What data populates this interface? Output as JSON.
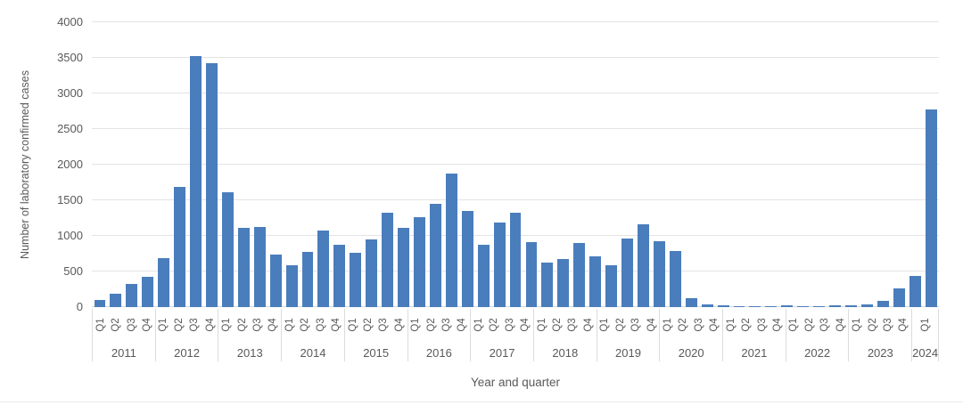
{
  "style": {
    "axis_text_color": "#595959",
    "gridline_color": "#E4E4E4",
    "axis_line_color": "#D8D8D8",
    "separator_color": "#DCDCDC"
  },
  "chart_data": {
    "type": "bar",
    "title": "",
    "xlabel": "Year and quarter",
    "ylabel": "Number of laboratory confirmed cases",
    "ylim": [
      0,
      4000
    ],
    "yticks": [
      0,
      500,
      1000,
      1500,
      2000,
      2500,
      3000,
      3500,
      4000
    ],
    "grid": true,
    "legend": "none",
    "bar_color": "#4A7DBC",
    "groups": [
      {
        "year": "2011",
        "quarters": [
          "Q1",
          "Q2",
          "Q3",
          "Q4"
        ],
        "values": [
          100,
          190,
          330,
          420
        ]
      },
      {
        "year": "2012",
        "quarters": [
          "Q1",
          "Q2",
          "Q3",
          "Q4"
        ],
        "values": [
          690,
          1690,
          3520,
          3430
        ]
      },
      {
        "year": "2013",
        "quarters": [
          "Q1",
          "Q2",
          "Q3",
          "Q4"
        ],
        "values": [
          1610,
          1110,
          1130,
          740
        ]
      },
      {
        "year": "2014",
        "quarters": [
          "Q1",
          "Q2",
          "Q3",
          "Q4"
        ],
        "values": [
          590,
          780,
          1080,
          870
        ]
      },
      {
        "year": "2015",
        "quarters": [
          "Q1",
          "Q2",
          "Q3",
          "Q4"
        ],
        "values": [
          760,
          950,
          1320,
          1110
        ]
      },
      {
        "year": "2016",
        "quarters": [
          "Q1",
          "Q2",
          "Q3",
          "Q4"
        ],
        "values": [
          1260,
          1450,
          1870,
          1350
        ]
      },
      {
        "year": "2017",
        "quarters": [
          "Q1",
          "Q2",
          "Q3",
          "Q4"
        ],
        "values": [
          880,
          1190,
          1320,
          910
        ]
      },
      {
        "year": "2018",
        "quarters": [
          "Q1",
          "Q2",
          "Q3",
          "Q4"
        ],
        "values": [
          630,
          670,
          900,
          710
        ]
      },
      {
        "year": "2019",
        "quarters": [
          "Q1",
          "Q2",
          "Q3",
          "Q4"
        ],
        "values": [
          590,
          960,
          1160,
          930
        ]
      },
      {
        "year": "2020",
        "quarters": [
          "Q1",
          "Q2",
          "Q3",
          "Q4"
        ],
        "values": [
          790,
          130,
          35,
          20
        ]
      },
      {
        "year": "2021",
        "quarters": [
          "Q1",
          "Q2",
          "Q3",
          "Q4"
        ],
        "values": [
          15,
          10,
          15,
          25
        ]
      },
      {
        "year": "2022",
        "quarters": [
          "Q1",
          "Q2",
          "Q3",
          "Q4"
        ],
        "values": [
          10,
          15,
          20,
          30
        ]
      },
      {
        "year": "2023",
        "quarters": [
          "Q1",
          "Q2",
          "Q3",
          "Q4"
        ],
        "values": [
          40,
          90,
          260,
          440
        ]
      },
      {
        "year": "2024",
        "quarters": [
          "Q1"
        ],
        "values": [
          2780
        ]
      }
    ]
  }
}
